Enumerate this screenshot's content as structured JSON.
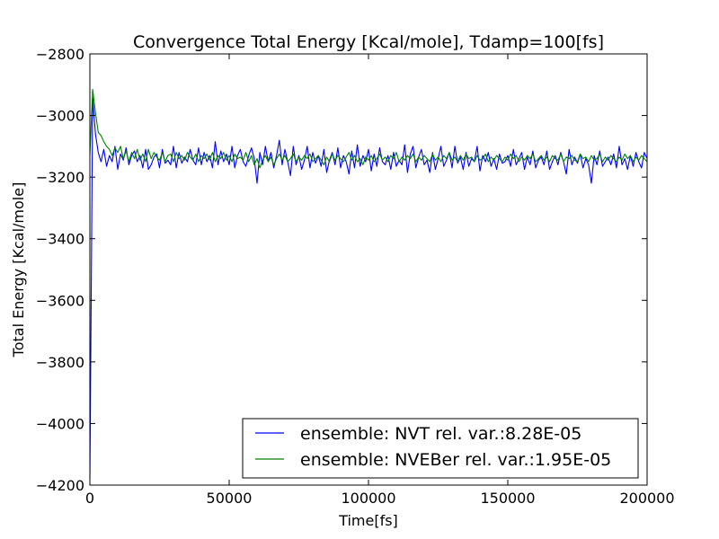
{
  "chart_data": {
    "type": "line",
    "title": "Convergence Total Energy [Kcal/mole], Tdamp=100[fs]",
    "xlabel": "Time[fs]",
    "ylabel": "Total Energy [Kcal/mole]",
    "xlim": [
      0,
      200000
    ],
    "ylim": [
      -4200,
      -2800
    ],
    "x_ticks": [
      0,
      50000,
      100000,
      150000,
      200000
    ],
    "x_tick_labels": [
      "0",
      "50000",
      "100000",
      "150000",
      "200000"
    ],
    "y_ticks": [
      -2800,
      -3000,
      -3200,
      -3400,
      -3600,
      -3800,
      -4000,
      -4200
    ],
    "y_tick_labels": [
      "−2800",
      "−3000",
      "−3200",
      "−3400",
      "−3600",
      "−3800",
      "−4000",
      "−4200"
    ],
    "grid": false,
    "legend_position": "lower-right",
    "series": [
      {
        "name": "ensemble: NVT rel. var.:8.28E-05",
        "color": "#0000ff",
        "x": [
          0,
          1000,
          2000,
          3000,
          4000,
          5000,
          6000,
          7000,
          8000,
          9000,
          10000,
          11000,
          12000,
          13000,
          14000,
          15000,
          16000,
          17000,
          18000,
          19000,
          20000,
          21000,
          22000,
          23000,
          24000,
          25000,
          26000,
          27000,
          28000,
          29000,
          30000,
          31000,
          32000,
          33000,
          34000,
          35000,
          36000,
          37000,
          38000,
          39000,
          40000,
          41000,
          42000,
          43000,
          44000,
          45000,
          46000,
          47000,
          48000,
          49000,
          50000,
          51000,
          52000,
          53000,
          54000,
          55000,
          56000,
          57000,
          58000,
          59000,
          60000,
          61000,
          62000,
          63000,
          64000,
          65000,
          66000,
          67000,
          68000,
          69000,
          70000,
          71000,
          72000,
          73000,
          74000,
          75000,
          76000,
          77000,
          78000,
          79000,
          80000,
          81000,
          82000,
          83000,
          84000,
          85000,
          86000,
          87000,
          88000,
          89000,
          90000,
          91000,
          92000,
          93000,
          94000,
          95000,
          96000,
          97000,
          98000,
          99000,
          100000,
          101000,
          102000,
          103000,
          104000,
          105000,
          106000,
          107000,
          108000,
          109000,
          110000,
          111000,
          112000,
          113000,
          114000,
          115000,
          116000,
          117000,
          118000,
          119000,
          120000,
          121000,
          122000,
          123000,
          124000,
          125000,
          126000,
          127000,
          128000,
          129000,
          130000,
          131000,
          132000,
          133000,
          134000,
          135000,
          136000,
          137000,
          138000,
          139000,
          140000,
          141000,
          142000,
          143000,
          144000,
          145000,
          146000,
          147000,
          148000,
          149000,
          150000,
          151000,
          152000,
          153000,
          154000,
          155000,
          156000,
          157000,
          158000,
          159000,
          160000,
          161000,
          162000,
          163000,
          164000,
          165000,
          166000,
          167000,
          168000,
          169000,
          170000,
          171000,
          172000,
          173000,
          174000,
          175000,
          176000,
          177000,
          178000,
          179000,
          180000,
          181000,
          182000,
          183000,
          184000,
          185000,
          186000,
          187000,
          188000,
          189000,
          190000,
          191000,
          192000,
          193000,
          194000,
          195000,
          196000,
          197000,
          198000,
          199000,
          200000
        ],
        "y": [
          -4180,
          -2940,
          -3060,
          -3120,
          -3150,
          -3110,
          -3165,
          -3130,
          -3150,
          -3100,
          -3175,
          -3125,
          -3145,
          -3105,
          -3160,
          -3130,
          -3115,
          -3150,
          -3130,
          -3170,
          -3110,
          -3175,
          -3160,
          -3135,
          -3125,
          -3170,
          -3110,
          -3155,
          -3145,
          -3160,
          -3100,
          -3170,
          -3120,
          -3155,
          -3135,
          -3150,
          -3110,
          -3145,
          -3160,
          -3105,
          -3160,
          -3120,
          -3150,
          -3130,
          -3170,
          -3085,
          -3160,
          -3115,
          -3150,
          -3125,
          -3160,
          -3100,
          -3170,
          -3130,
          -3110,
          -3150,
          -3165,
          -3130,
          -3105,
          -3140,
          -3220,
          -3120,
          -3160,
          -3100,
          -3150,
          -3120,
          -3170,
          -3130,
          -3080,
          -3160,
          -3110,
          -3150,
          -3195,
          -3100,
          -3160,
          -3130,
          -3175,
          -3145,
          -3100,
          -3170,
          -3120,
          -3155,
          -3130,
          -3165,
          -3110,
          -3185,
          -3145,
          -3120,
          -3160,
          -3105,
          -3170,
          -3130,
          -3150,
          -3190,
          -3115,
          -3170,
          -3095,
          -3165,
          -3130,
          -3150,
          -3110,
          -3180,
          -3125,
          -3165,
          -3105,
          -3150,
          -3160,
          -3130,
          -3175,
          -3120,
          -3165,
          -3145,
          -3160,
          -3095,
          -3185,
          -3125,
          -3100,
          -3170,
          -3135,
          -3110,
          -3160,
          -3145,
          -3185,
          -3120,
          -3175,
          -3140,
          -3100,
          -3165,
          -3145,
          -3120,
          -3170,
          -3100,
          -3155,
          -3135,
          -3175,
          -3120,
          -3165,
          -3140,
          -3150,
          -3100,
          -3180,
          -3130,
          -3150,
          -3120,
          -3165,
          -3140,
          -3175,
          -3125,
          -3155,
          -3150,
          -3130,
          -3165,
          -3110,
          -3160,
          -3140,
          -3120,
          -3175,
          -3135,
          -3160,
          -3115,
          -3170,
          -3145,
          -3135,
          -3160,
          -3115,
          -3175,
          -3150,
          -3130,
          -3160,
          -3120,
          -3150,
          -3190,
          -3110,
          -3160,
          -3135,
          -3155,
          -3125,
          -3170,
          -3140,
          -3160,
          -3220,
          -3130,
          -3160,
          -3115,
          -3165,
          -3150,
          -3135,
          -3160,
          -3125,
          -3170,
          -3100,
          -3160,
          -3140,
          -3175,
          -3130,
          -3165,
          -3120,
          -3150,
          -3170,
          -3120,
          -3140
        ]
      },
      {
        "name": "ensemble: NVEBer rel. var.:1.95E-05",
        "color": "#008000",
        "x": [
          0,
          1000,
          2000,
          3000,
          4000,
          5000,
          6000,
          7000,
          8000,
          9000,
          10000,
          11000,
          12000,
          13000,
          14000,
          15000,
          16000,
          17000,
          18000,
          19000,
          20000,
          21000,
          22000,
          23000,
          24000,
          25000,
          26000,
          27000,
          28000,
          29000,
          30000,
          31000,
          32000,
          33000,
          34000,
          35000,
          36000,
          37000,
          38000,
          39000,
          40000,
          41000,
          42000,
          43000,
          44000,
          45000,
          46000,
          47000,
          48000,
          49000,
          50000,
          51000,
          52000,
          53000,
          54000,
          55000,
          56000,
          57000,
          58000,
          59000,
          60000,
          61000,
          62000,
          63000,
          64000,
          65000,
          66000,
          67000,
          68000,
          69000,
          70000,
          71000,
          72000,
          73000,
          74000,
          75000,
          76000,
          77000,
          78000,
          79000,
          80000,
          81000,
          82000,
          83000,
          84000,
          85000,
          86000,
          87000,
          88000,
          89000,
          90000,
          91000,
          92000,
          93000,
          94000,
          95000,
          96000,
          97000,
          98000,
          99000,
          100000,
          101000,
          102000,
          103000,
          104000,
          105000,
          106000,
          107000,
          108000,
          109000,
          110000,
          111000,
          112000,
          113000,
          114000,
          115000,
          116000,
          117000,
          118000,
          119000,
          120000,
          121000,
          122000,
          123000,
          124000,
          125000,
          126000,
          127000,
          128000,
          129000,
          130000,
          131000,
          132000,
          133000,
          134000,
          135000,
          136000,
          137000,
          138000,
          139000,
          140000,
          141000,
          142000,
          143000,
          144000,
          145000,
          146000,
          147000,
          148000,
          149000,
          150000,
          151000,
          152000,
          153000,
          154000,
          155000,
          156000,
          157000,
          158000,
          159000,
          160000,
          161000,
          162000,
          163000,
          164000,
          165000,
          166000,
          167000,
          168000,
          169000,
          170000,
          171000,
          172000,
          173000,
          174000,
          175000,
          176000,
          177000,
          178000,
          179000,
          180000,
          181000,
          182000,
          183000,
          184000,
          185000,
          186000,
          187000,
          188000,
          189000,
          190000,
          191000,
          192000,
          193000,
          194000,
          195000,
          196000,
          197000,
          198000,
          199000,
          200000
        ],
        "y": [
          -3130,
          -2915,
          -2990,
          -3055,
          -3065,
          -3085,
          -3100,
          -3110,
          -3130,
          -3105,
          -3120,
          -3100,
          -3140,
          -3115,
          -3150,
          -3120,
          -3140,
          -3110,
          -3145,
          -3125,
          -3150,
          -3110,
          -3140,
          -3120,
          -3135,
          -3145,
          -3120,
          -3150,
          -3130,
          -3125,
          -3150,
          -3120,
          -3140,
          -3130,
          -3145,
          -3120,
          -3135,
          -3145,
          -3125,
          -3150,
          -3130,
          -3140,
          -3125,
          -3145,
          -3120,
          -3150,
          -3130,
          -3140,
          -3120,
          -3145,
          -3130,
          -3150,
          -3125,
          -3140,
          -3135,
          -3145,
          -3120,
          -3150,
          -3130,
          -3160,
          -3140,
          -3170,
          -3145,
          -3130,
          -3150,
          -3135,
          -3160,
          -3140,
          -3125,
          -3145,
          -3130,
          -3150,
          -3140,
          -3125,
          -3150,
          -3135,
          -3145,
          -3130,
          -3140,
          -3125,
          -3150,
          -3140,
          -3130,
          -3145,
          -3160,
          -3135,
          -3150,
          -3125,
          -3145,
          -3130,
          -3140,
          -3150,
          -3135,
          -3120,
          -3145,
          -3130,
          -3150,
          -3140,
          -3160,
          -3135,
          -3145,
          -3130,
          -3150,
          -3140,
          -3125,
          -3145,
          -3135,
          -3150,
          -3130,
          -3140,
          -3120,
          -3150,
          -3135,
          -3145,
          -3130,
          -3140,
          -3125,
          -3150,
          -3135,
          -3145,
          -3130,
          -3140,
          -3150,
          -3125,
          -3145,
          -3135,
          -3150,
          -3130,
          -3140,
          -3120,
          -3145,
          -3135,
          -3150,
          -3130,
          -3145,
          -3125,
          -3140,
          -3135,
          -3150,
          -3130,
          -3145,
          -3140,
          -3125,
          -3150,
          -3135,
          -3145,
          -3130,
          -3140,
          -3150,
          -3135,
          -3145,
          -3125,
          -3140,
          -3130,
          -3150,
          -3135,
          -3145,
          -3130,
          -3140,
          -3125,
          -3150,
          -3140,
          -3130,
          -3145,
          -3135,
          -3150,
          -3130,
          -3140,
          -3145,
          -3125,
          -3150,
          -3135,
          -3140,
          -3130,
          -3145,
          -3150,
          -3125,
          -3140,
          -3135,
          -3150,
          -3130,
          -3145,
          -3140,
          -3125,
          -3150,
          -3135,
          -3145,
          -3130,
          -3140,
          -3150,
          -3135,
          -3145,
          -3125,
          -3140,
          -3130,
          -3150,
          -3135,
          -3145,
          -3130,
          -3140,
          -3150
        ]
      }
    ]
  }
}
